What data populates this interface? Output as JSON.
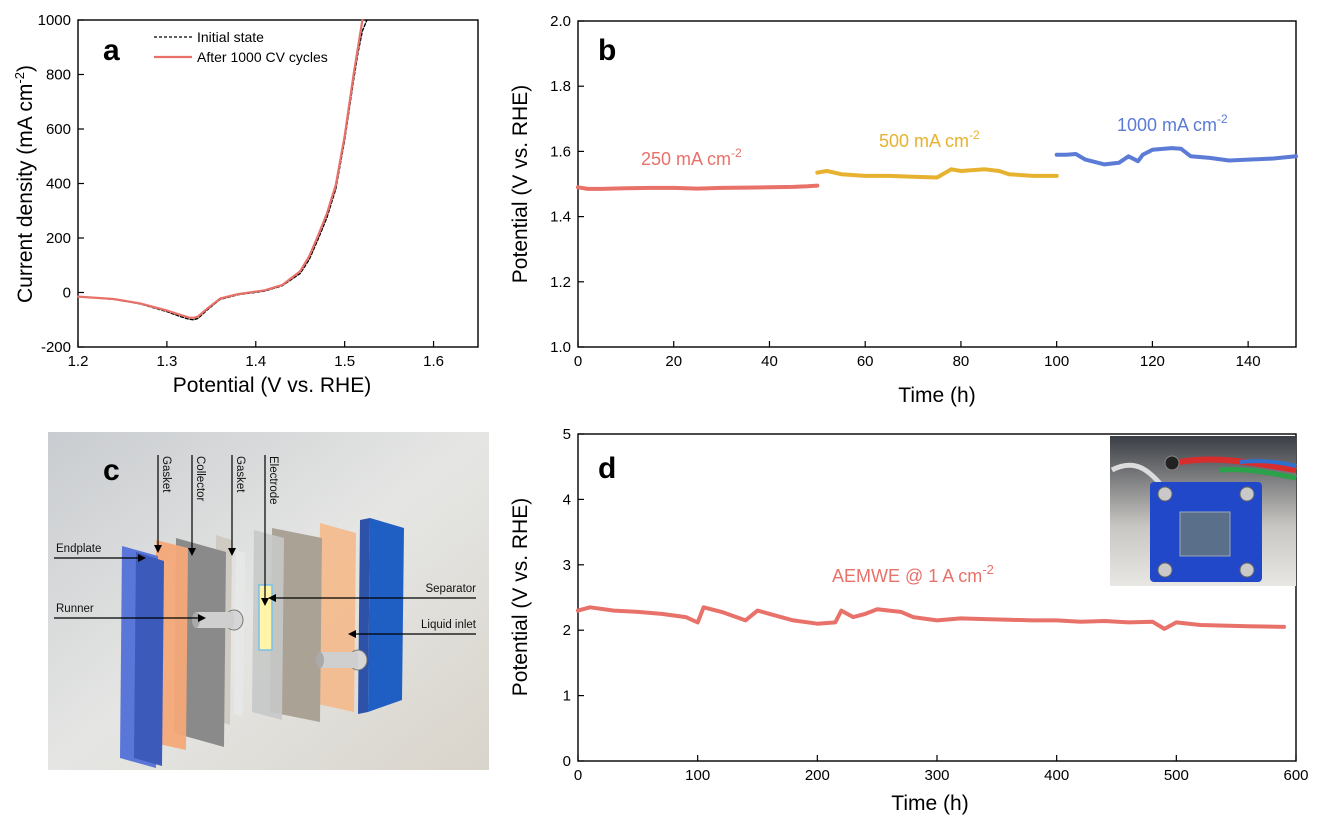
{
  "colors": {
    "red": "#e8716a",
    "orange": "#e6b22f",
    "blue": "#5b7bd6",
    "black": "#000000"
  },
  "chart_data": [
    {
      "panel": "a",
      "type": "line",
      "xlabel": "Potential (V vs. RHE)",
      "ylabel_parts": [
        "Current density (mA cm",
        "-2",
        ")"
      ],
      "xlim": [
        1.2,
        1.65
      ],
      "ylim": [
        -200,
        1000
      ],
      "xticks": [
        "1.2",
        "1.3",
        "1.4",
        "1.5",
        "1.6"
      ],
      "yticks": [
        "-200",
        "0",
        "200",
        "400",
        "600",
        "800",
        "1000"
      ],
      "legend_position": "top-center",
      "series": [
        {
          "name": "Initial state",
          "style": "dashed",
          "color": "#000000",
          "x": [
            1.2,
            1.24,
            1.27,
            1.3,
            1.315,
            1.325,
            1.33,
            1.335,
            1.345,
            1.36,
            1.38,
            1.41,
            1.43,
            1.45,
            1.46,
            1.47,
            1.48,
            1.49,
            1.5,
            1.51,
            1.515,
            1.52,
            1.525
          ],
          "y": [
            -15,
            -25,
            -42,
            -70,
            -88,
            -98,
            -100,
            -95,
            -65,
            -25,
            -8,
            5,
            25,
            70,
            120,
            195,
            275,
            380,
            560,
            780,
            880,
            960,
            1000
          ]
        },
        {
          "name": "After 1000 CV cycles",
          "style": "solid",
          "color": "#e8716a",
          "x": [
            1.2,
            1.24,
            1.27,
            1.3,
            1.315,
            1.325,
            1.33,
            1.335,
            1.345,
            1.36,
            1.38,
            1.41,
            1.43,
            1.45,
            1.46,
            1.47,
            1.48,
            1.49,
            1.5,
            1.51,
            1.515,
            1.52
          ],
          "y": [
            -15,
            -24,
            -40,
            -66,
            -82,
            -92,
            -93,
            -88,
            -60,
            -22,
            -6,
            8,
            28,
            78,
            132,
            208,
            290,
            395,
            575,
            800,
            900,
            1000
          ]
        }
      ]
    },
    {
      "panel": "b",
      "type": "line",
      "xlabel": "Time (h)",
      "ylabel": "Potential (V vs. RHE)",
      "xlim": [
        0,
        150
      ],
      "ylim": [
        1.0,
        2.0
      ],
      "xticks": [
        "0",
        "20",
        "40",
        "60",
        "80",
        "100",
        "120",
        "140"
      ],
      "yticks": [
        "1.0",
        "1.2",
        "1.4",
        "1.6",
        "1.8",
        "2.0"
      ],
      "annotations": [
        {
          "text": "250 mA cm",
          "sup": "-2",
          "color": "#e8716a"
        },
        {
          "text": "500 mA cm",
          "sup": "-2",
          "color": "#e6b22f"
        },
        {
          "text": "1000 mA cm",
          "sup": "-2",
          "color": "#5b7bd6"
        }
      ],
      "series": [
        {
          "color": "#e8716a",
          "x": [
            0,
            2,
            5,
            10,
            15,
            20,
            25,
            30,
            35,
            40,
            45,
            48,
            50
          ],
          "y": [
            1.49,
            1.485,
            1.485,
            1.487,
            1.488,
            1.488,
            1.486,
            1.488,
            1.489,
            1.49,
            1.491,
            1.493,
            1.495
          ]
        },
        {
          "color": "#e6b22f",
          "x": [
            50,
            52,
            55,
            60,
            65,
            70,
            75,
            78,
            80,
            85,
            88,
            90,
            95,
            100
          ],
          "y": [
            1.535,
            1.54,
            1.53,
            1.525,
            1.525,
            1.522,
            1.52,
            1.545,
            1.54,
            1.545,
            1.54,
            1.53,
            1.525,
            1.525
          ]
        },
        {
          "color": "#5b7bd6",
          "x": [
            100,
            102,
            104,
            106,
            110,
            113,
            115,
            117,
            118,
            120,
            124,
            126,
            128,
            132,
            136,
            140,
            145,
            150
          ],
          "y": [
            1.59,
            1.59,
            1.592,
            1.575,
            1.56,
            1.565,
            1.585,
            1.57,
            1.59,
            1.605,
            1.61,
            1.608,
            1.585,
            1.58,
            1.572,
            1.575,
            1.578,
            1.585
          ]
        }
      ]
    },
    {
      "panel": "d",
      "type": "line",
      "xlabel": "Time (h)",
      "ylabel": "Potential (V vs. RHE)",
      "xlim": [
        0,
        600
      ],
      "ylim": [
        0,
        5
      ],
      "xticks": [
        "0",
        "100",
        "200",
        "300",
        "400",
        "500",
        "600"
      ],
      "yticks": [
        "0",
        "1",
        "2",
        "3",
        "4",
        "5"
      ],
      "annotations": [
        {
          "text": "AEMWE @ 1 A cm",
          "sup": "-2",
          "color": "#e8716a"
        }
      ],
      "series": [
        {
          "color": "#e8716a",
          "x": [
            0,
            10,
            30,
            50,
            70,
            90,
            100,
            105,
            120,
            140,
            150,
            160,
            180,
            200,
            215,
            220,
            230,
            240,
            250,
            270,
            280,
            300,
            320,
            340,
            360,
            380,
            400,
            420,
            440,
            460,
            480,
            490,
            500,
            520,
            540,
            560,
            590
          ],
          "y": [
            2.3,
            2.35,
            2.3,
            2.28,
            2.25,
            2.2,
            2.12,
            2.35,
            2.28,
            2.15,
            2.3,
            2.25,
            2.15,
            2.1,
            2.12,
            2.3,
            2.2,
            2.25,
            2.32,
            2.28,
            2.2,
            2.15,
            2.18,
            2.17,
            2.16,
            2.15,
            2.15,
            2.13,
            2.14,
            2.12,
            2.13,
            2.02,
            2.12,
            2.08,
            2.07,
            2.06,
            2.05
          ]
        }
      ]
    }
  ],
  "panel_labels": {
    "a": "a",
    "b": "b",
    "c": "c",
    "d": "d"
  },
  "schematic": {
    "labels": [
      "Endplate",
      "Gasket",
      "Collector",
      "Gasket",
      "Electrode",
      "Runner",
      "Separator",
      "Liquid inlet"
    ]
  }
}
